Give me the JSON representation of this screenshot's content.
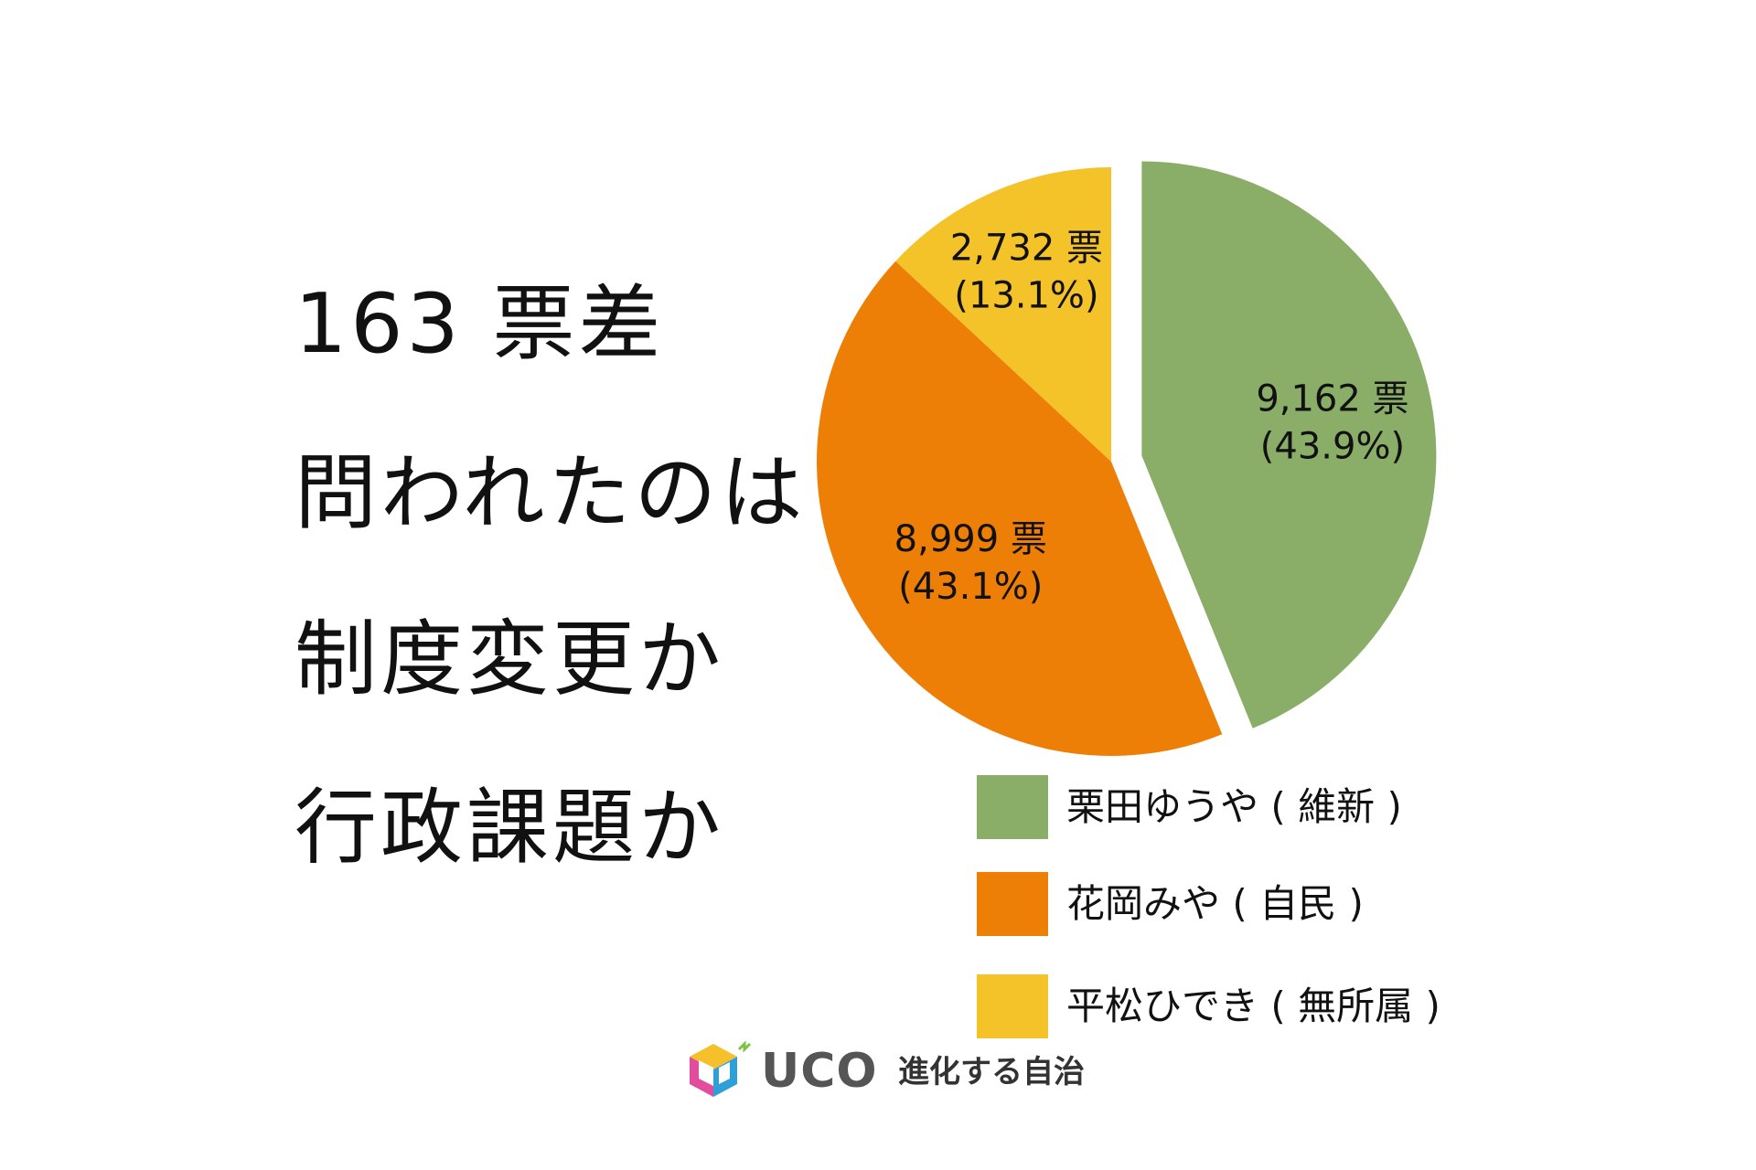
{
  "headline": {
    "line1": "163 票差",
    "line2": "問われたのは",
    "line3": "制度変更か",
    "line4": "行政課題か"
  },
  "chart_data": {
    "type": "pie",
    "slices": [
      {
        "name": "栗田ゆうや ( 維新 )",
        "votes": 9162,
        "percent": 43.9,
        "label_votes": "9,162 票",
        "label_percent": "(43.9%)",
        "color": "#8aad68",
        "exploded": true
      },
      {
        "name": "花岡みや ( 自民 )",
        "votes": 8999,
        "percent": 43.1,
        "label_votes": "8,999 票",
        "label_percent": "(43.1%)",
        "color": "#ee7f06",
        "exploded": false
      },
      {
        "name": "平松ひでき ( 無所属 )",
        "votes": 2732,
        "percent": 13.1,
        "label_votes": "2,732 票",
        "label_percent": "(13.1%)",
        "color": "#f4c229",
        "exploded": false
      }
    ],
    "legend_position": "bottom-right"
  },
  "legend": {
    "items": [
      {
        "label": "栗田ゆうや ( 維新 )",
        "color": "#8aad68"
      },
      {
        "label": "花岡みや ( 自民 )",
        "color": "#ee7f06"
      },
      {
        "label": "平松ひでき ( 無所属 )",
        "color": "#f4c229"
      }
    ]
  },
  "footer": {
    "brand": "UCO",
    "tagline": "進化する自治",
    "logo_icon": "hexagon-cube-logo-icon"
  }
}
